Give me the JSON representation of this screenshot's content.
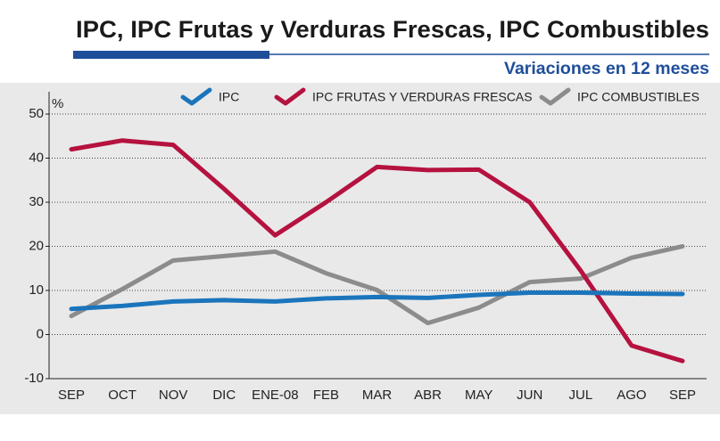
{
  "chart_data": {
    "type": "line",
    "title": "IPC, IPC Frutas y Verduras Frescas, IPC Combustibles",
    "subtitle": "Variaciones en 12 meses",
    "y_label": "%",
    "categories": [
      "SEP",
      "OCT",
      "NOV",
      "DIC",
      "ENE-08",
      "FEB",
      "MAR",
      "ABR",
      "MAY",
      "JUN",
      "JUL",
      "AGO",
      "SEP"
    ],
    "series": [
      {
        "name": "IPC",
        "color": "#1b75bc",
        "values": [
          5.8,
          6.5,
          7.5,
          7.8,
          7.5,
          8.2,
          8.5,
          8.3,
          9.0,
          9.5,
          9.5,
          9.3,
          9.2
        ]
      },
      {
        "name": "IPC FRUTAS Y VERDURAS FRESCAS",
        "color": "#b5123f",
        "values": [
          42,
          44,
          43,
          33,
          22.5,
          30,
          38,
          37.3,
          37.4,
          30,
          14.5,
          -2.5,
          -6
        ]
      },
      {
        "name": "IPC COMBUSTIBLES",
        "color": "#8c8c8c",
        "values": [
          4.2,
          10.3,
          16.8,
          17.8,
          18.8,
          13.9,
          10.1,
          2.6,
          6.1,
          11.9,
          12.7,
          17.4,
          20.0
        ]
      }
    ],
    "ylim": [
      -10,
      50
    ],
    "yticks": [
      -10,
      0,
      10,
      20,
      30,
      40,
      50
    ],
    "grid": true
  }
}
